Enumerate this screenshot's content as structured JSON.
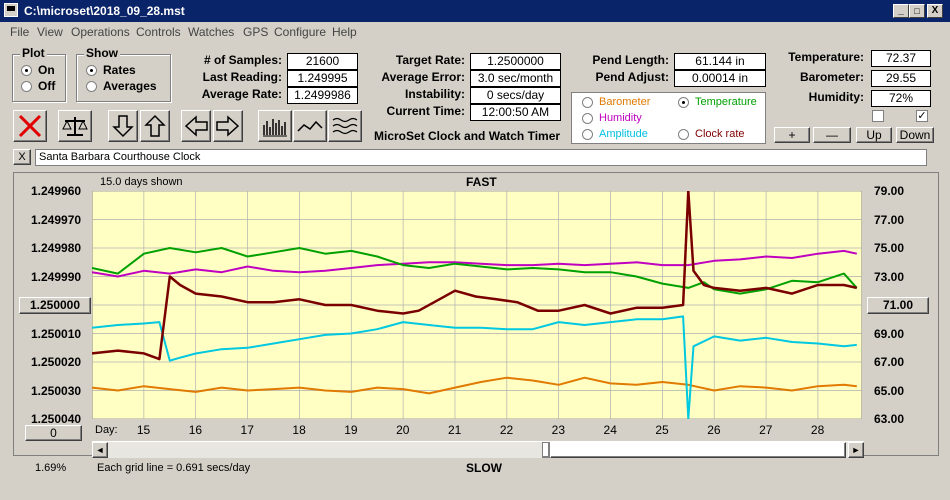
{
  "window": {
    "title": "C:\\microset\\2018_09_28.mst",
    "minimize": "_",
    "maximize": "□",
    "close": "X"
  },
  "menu": [
    "File",
    "View",
    "Operations",
    "Controls",
    "Watches",
    "GPS",
    "Configure",
    "Help"
  ],
  "plot_group": {
    "label": "Plot",
    "options": [
      "On",
      "Off"
    ],
    "selected": "On"
  },
  "show_group": {
    "label": "Show",
    "options": [
      "Rates",
      "Averages"
    ],
    "selected": "Rates"
  },
  "stats": [
    {
      "label": "# of Samples:",
      "value": "21600"
    },
    {
      "label": "Last Reading:",
      "value": "1.249995"
    },
    {
      "label": "Average Rate:",
      "value": "1.2499986"
    }
  ],
  "rates": [
    {
      "label": "Target Rate:",
      "value": "1.2500000"
    },
    {
      "label": "Average Error:",
      "value": "3.0 sec/month"
    },
    {
      "label": "Instability:",
      "value": "0 secs/day"
    },
    {
      "label": "Current Time:",
      "value": "12:00:50 AM"
    }
  ],
  "pendulum": [
    {
      "label": "Pend Length:",
      "value": "61.144 in"
    },
    {
      "label": "Pend Adjust:",
      "value": "0.00014 in"
    }
  ],
  "environment": [
    {
      "label": "Temperature:",
      "value": "72.37"
    },
    {
      "label": "Barometer:",
      "value": "29.55"
    },
    {
      "label": "Humidity:",
      "value": "72%"
    }
  ],
  "app_subtitle": "MicroSet Clock and Watch Timer",
  "aux_options": [
    {
      "label": "Barometer",
      "color": "#e07a00",
      "selected": false
    },
    {
      "label": "Temperature",
      "color": "#00a000",
      "selected": true
    },
    {
      "label": "Humidity",
      "color": "#c000c0",
      "selected": false
    },
    {
      "label": "Clock rate",
      "color": "#800000",
      "selected": false
    },
    {
      "label": "Amplitude",
      "color": "#00c0e0",
      "selected": false
    }
  ],
  "aux_buttons": [
    "+",
    "—",
    "Up",
    "Down"
  ],
  "checkboxes": [
    {
      "checked": false
    },
    {
      "checked": true
    }
  ],
  "clock_name": "Santa Barbara Courthouse Clock",
  "clear_btn": "X",
  "chart_header": {
    "days_shown": "15.0 days shown",
    "top_label": "FAST",
    "bottom_label": "SLOW"
  },
  "center_left_value": "1.250000",
  "center_right_value": "71.00",
  "left_bottom_button": "0",
  "day_label": "Day:",
  "percent": "1.69%",
  "grid_note": "Each grid line = 0.691 secs/day",
  "chart_data": {
    "type": "line",
    "x_label": "Day:",
    "x_ticks": [
      "15",
      "16",
      "17",
      "18",
      "19",
      "20",
      "21",
      "22",
      "23",
      "24",
      "25",
      "26",
      "27",
      "28"
    ],
    "xlim": [
      14.0,
      28.85
    ],
    "left_axis": {
      "ticks": [
        "1.249960",
        "1.249970",
        "1.249980",
        "1.249990",
        "1.250000",
        "1.250010",
        "1.250020",
        "1.250030",
        "1.250040"
      ],
      "ylim": [
        1.24996,
        1.25004
      ],
      "inverted": true
    },
    "right_axis": {
      "ticks": [
        "79.00",
        "77.00",
        "75.00",
        "73.00",
        "71.00",
        "69.00",
        "67.00",
        "65.00",
        "63.00"
      ],
      "ylim": [
        63,
        79
      ]
    },
    "series": [
      {
        "name": "Clock rate",
        "color": "#7a0000",
        "axis": "left",
        "x": [
          14.0,
          14.5,
          15.0,
          15.3,
          15.5,
          15.7,
          16.0,
          16.5,
          17.0,
          17.5,
          18.0,
          18.5,
          19.0,
          19.5,
          20.0,
          20.3,
          20.6,
          21.0,
          21.4,
          21.8,
          22.2,
          22.6,
          23.0,
          23.5,
          24.0,
          24.5,
          25.0,
          25.4,
          25.5,
          25.6,
          25.8,
          26.0,
          26.5,
          27.0,
          27.5,
          28.0,
          28.5,
          28.75
        ],
        "y": [
          1.250017,
          1.250016,
          1.250017,
          1.250019,
          1.24999,
          1.249993,
          1.249996,
          1.249997,
          1.249999,
          1.249999,
          1.249998,
          1.25,
          1.25,
          1.250002,
          1.250003,
          1.250002,
          1.249999,
          1.249995,
          1.249997,
          1.249998,
          1.249999,
          1.250002,
          1.250002,
          1.25,
          1.250003,
          1.250001,
          1.250001,
          1.25,
          1.24996,
          1.249988,
          1.249993,
          1.249994,
          1.249995,
          1.249994,
          1.249996,
          1.249993,
          1.249993,
          1.249994
        ]
      },
      {
        "name": "Temperature",
        "color": "#00a000",
        "axis": "right",
        "x": [
          14.0,
          14.5,
          15.0,
          15.5,
          16.0,
          16.5,
          17.0,
          17.5,
          18.0,
          18.5,
          19.0,
          19.5,
          20.0,
          20.5,
          21.0,
          21.5,
          22.0,
          22.5,
          23.0,
          23.5,
          24.0,
          24.5,
          25.0,
          25.5,
          25.8,
          26.0,
          26.5,
          27.0,
          27.5,
          28.0,
          28.5,
          28.75
        ],
        "y": [
          73.6,
          73.2,
          74.6,
          75.0,
          74.7,
          75.0,
          74.4,
          74.7,
          75.0,
          74.6,
          74.8,
          74.4,
          73.8,
          73.6,
          73.9,
          73.7,
          73.5,
          73.6,
          73.5,
          73.3,
          73.3,
          73.0,
          72.5,
          72.2,
          72.6,
          72.1,
          71.8,
          72.1,
          72.7,
          72.6,
          73.2,
          72.2
        ]
      },
      {
        "name": "Humidity",
        "color": "#c000c0",
        "axis": "right",
        "x": [
          14.0,
          14.5,
          15.0,
          15.5,
          16.0,
          16.5,
          17.0,
          17.5,
          18.0,
          18.5,
          19.0,
          19.5,
          20.0,
          20.5,
          21.0,
          21.5,
          22.0,
          22.5,
          23.0,
          23.5,
          24.0,
          24.5,
          25.0,
          25.5,
          26.0,
          26.5,
          27.0,
          27.5,
          28.0,
          28.5,
          28.75
        ],
        "y": [
          73.3,
          73.0,
          73.4,
          73.2,
          73.5,
          73.3,
          73.7,
          73.4,
          73.3,
          73.4,
          73.6,
          73.8,
          73.9,
          74.0,
          74.0,
          73.9,
          73.8,
          73.8,
          73.9,
          73.8,
          73.9,
          74.0,
          73.8,
          73.8,
          74.1,
          74.2,
          74.4,
          74.3,
          74.6,
          74.8,
          74.6
        ]
      },
      {
        "name": "Amplitude",
        "color": "#00c8e0",
        "axis": "right",
        "x": [
          14.0,
          14.5,
          15.0,
          15.3,
          15.5,
          15.7,
          16.0,
          16.5,
          17.0,
          17.5,
          18.0,
          18.5,
          19.0,
          19.5,
          20.0,
          20.5,
          21.0,
          21.5,
          22.0,
          22.5,
          23.0,
          23.5,
          24.0,
          24.5,
          25.0,
          25.4,
          25.5,
          25.6,
          26.0,
          26.5,
          27.0,
          27.5,
          28.0,
          28.5,
          28.75
        ],
        "y": [
          69.4,
          69.6,
          69.7,
          69.8,
          67.1,
          67.3,
          67.6,
          67.9,
          68.0,
          68.3,
          68.6,
          68.9,
          69.0,
          69.3,
          69.8,
          69.6,
          69.4,
          69.4,
          69.3,
          69.3,
          69.8,
          69.6,
          69.8,
          70.0,
          70.0,
          70.2,
          63.0,
          68.1,
          68.8,
          68.5,
          68.7,
          68.4,
          68.3,
          68.1,
          68.2
        ]
      },
      {
        "name": "Barometer",
        "color": "#e07a00",
        "axis": "right",
        "x": [
          14.0,
          14.5,
          15.0,
          15.5,
          16.0,
          16.5,
          17.0,
          17.5,
          18.0,
          18.5,
          19.0,
          19.5,
          20.0,
          20.5,
          21.0,
          21.5,
          22.0,
          22.5,
          23.0,
          23.5,
          24.0,
          24.5,
          25.0,
          25.5,
          26.0,
          26.5,
          27.0,
          27.5,
          28.0,
          28.5,
          28.75
        ],
        "y": [
          65.2,
          65.0,
          65.3,
          65.1,
          64.9,
          65.2,
          65.0,
          65.1,
          65.2,
          65.0,
          64.9,
          65.2,
          65.1,
          64.8,
          65.2,
          65.6,
          65.9,
          65.7,
          65.4,
          65.9,
          65.5,
          65.4,
          65.6,
          65.4,
          65.0,
          65.3,
          65.2,
          65.0,
          65.3,
          65.4,
          65.3
        ]
      }
    ]
  }
}
